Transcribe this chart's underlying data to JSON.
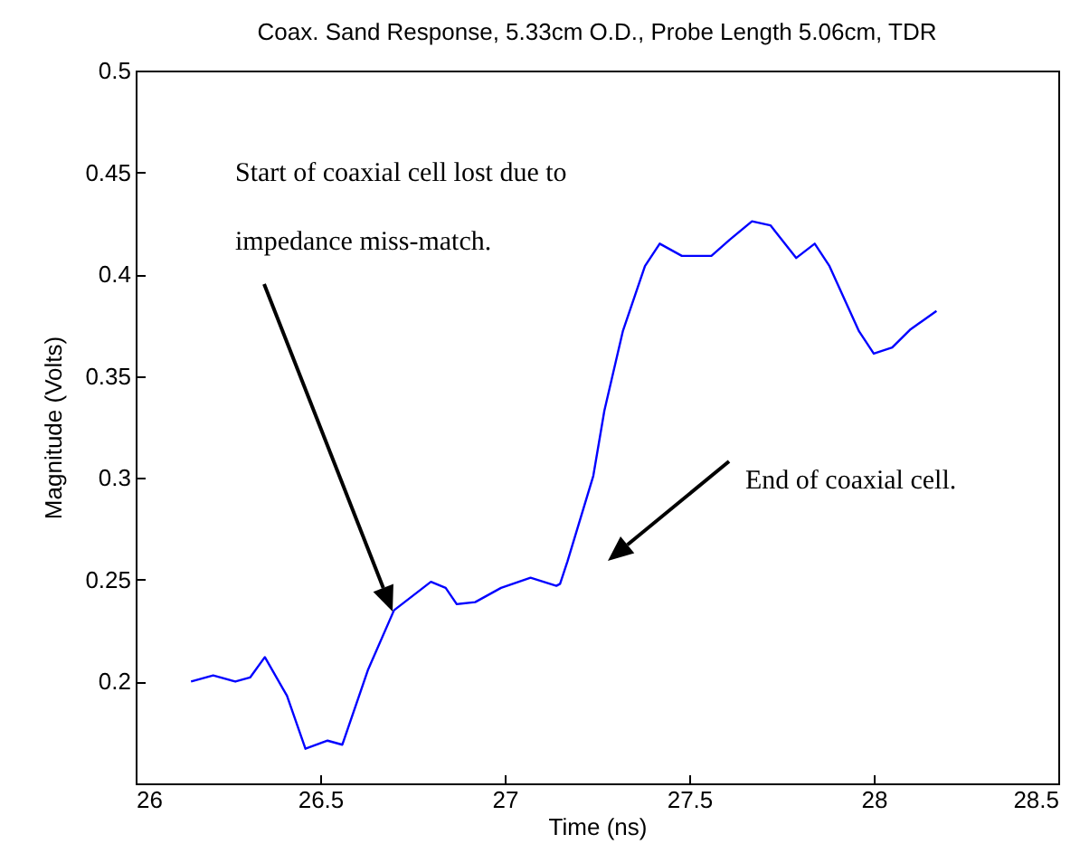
{
  "chart_data": {
    "type": "line",
    "title": "Coax. Sand Response, 5.33cm O.D., Probe Length 5.06cm, TDR",
    "xlabel": "Time (ns)",
    "ylabel": "Magnitude (Volts)",
    "xlim": [
      26,
      28.5
    ],
    "xticks": [
      26,
      26.5,
      27,
      27.5,
      28,
      28.5
    ],
    "ylim": [
      0.15,
      0.5
    ],
    "yticks": [
      0.2,
      0.25,
      0.3,
      0.35,
      0.4,
      0.45,
      0.5
    ],
    "grid": false,
    "x": [
      26.15,
      26.21,
      26.27,
      26.31,
      26.35,
      26.41,
      26.46,
      26.52,
      26.56,
      26.63,
      26.7,
      26.8,
      26.84,
      26.87,
      26.92,
      26.99,
      27.07,
      27.14,
      27.15,
      27.17,
      27.24,
      27.27,
      27.32,
      27.38,
      27.42,
      27.48,
      27.56,
      27.61,
      27.67,
      27.72,
      27.79,
      27.84,
      27.88,
      27.93,
      27.96,
      28.0,
      28.05,
      28.1,
      28.17
    ],
    "series": [
      {
        "color": "#0000ff",
        "values": [
          0.2,
          0.203,
          0.2,
          0.202,
          0.212,
          0.193,
          0.167,
          0.171,
          0.169,
          0.206,
          0.235,
          0.249,
          0.246,
          0.238,
          0.239,
          0.246,
          0.251,
          0.247,
          0.248,
          0.259,
          0.301,
          0.333,
          0.372,
          0.404,
          0.415,
          0.409,
          0.409,
          0.417,
          0.426,
          0.424,
          0.408,
          0.415,
          0.404,
          0.384,
          0.372,
          0.361,
          0.364,
          0.373,
          0.382
        ]
      }
    ],
    "annotations": [
      "Start of coaxial cell lost due to\nimpedance miss-match.",
      "End of coaxial cell."
    ]
  }
}
